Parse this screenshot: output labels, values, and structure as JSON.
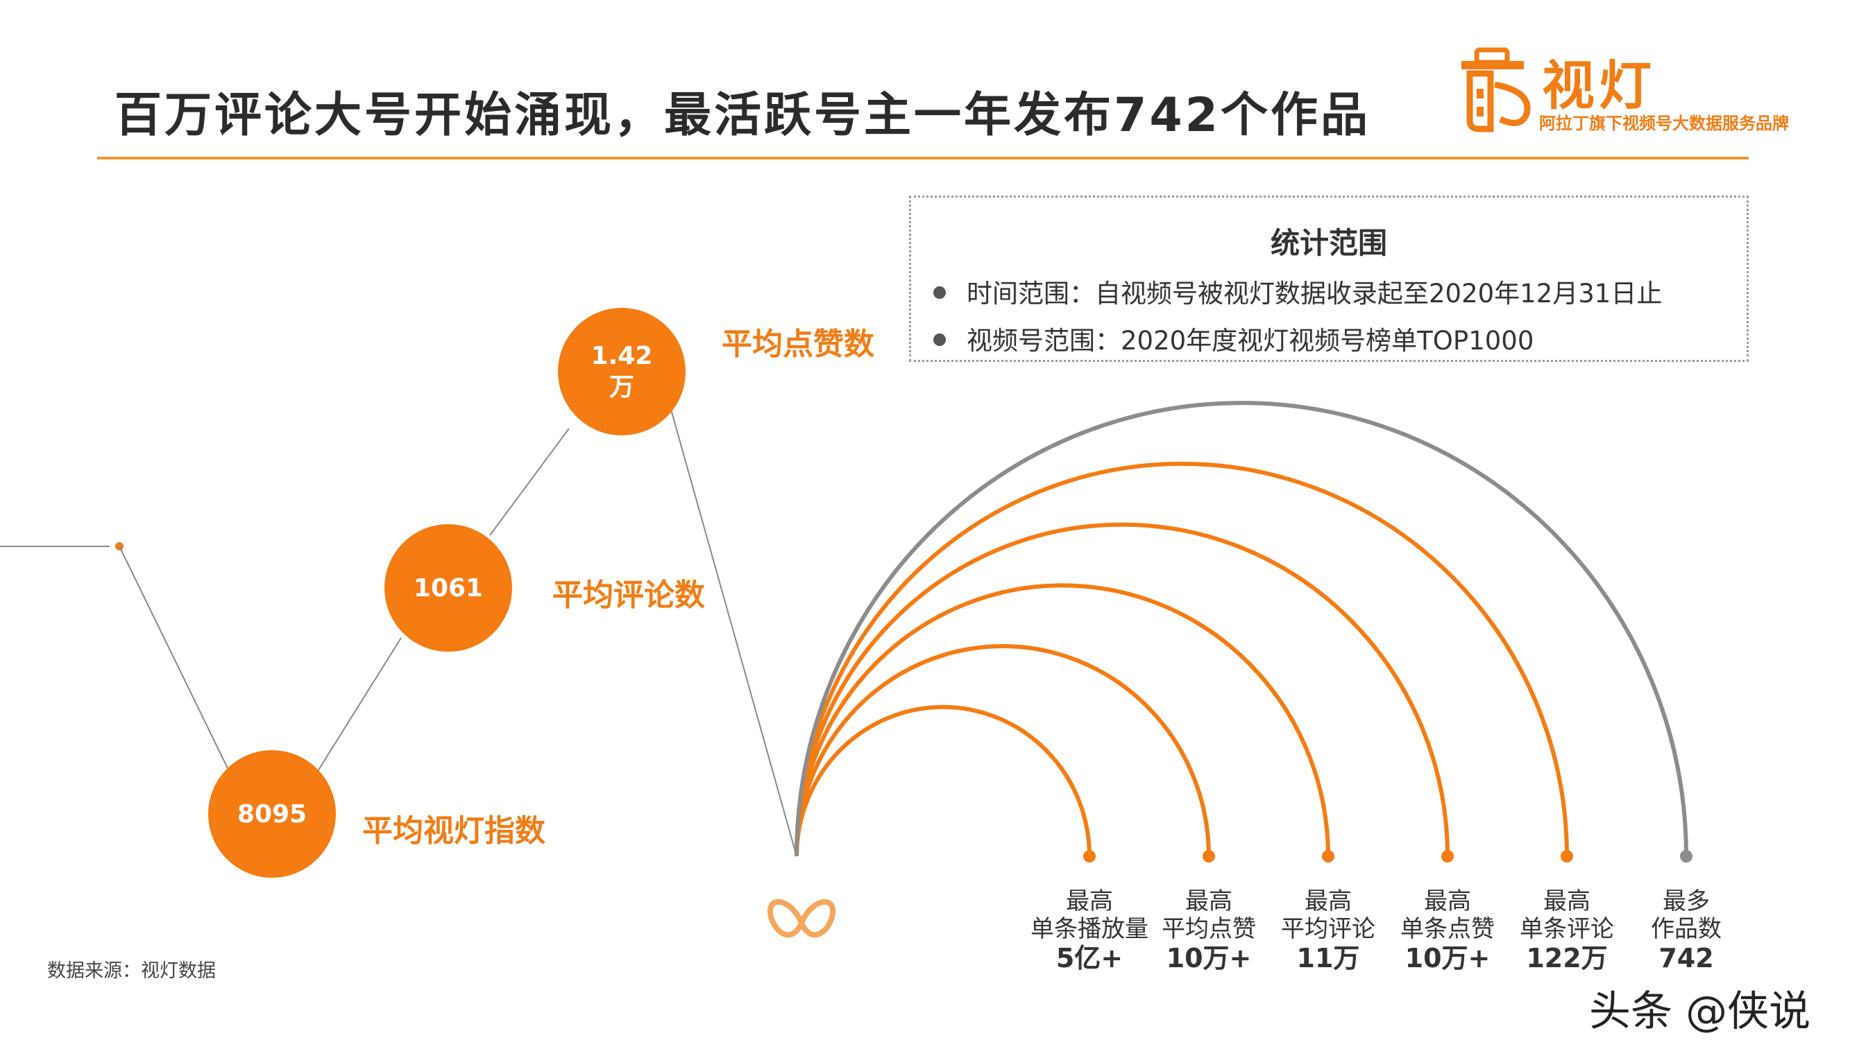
{
  "title": "百万评论大号开始涌现，最活跃号主一年发布742个作品",
  "brand": {
    "name": "视灯",
    "tagline": "阿拉丁旗下视频号大数据服务品牌",
    "accent": "#f07d15"
  },
  "scope": {
    "heading": "统计范围",
    "items": [
      "时间范围：自视频号被视灯数据收录起至2020年12月31日止",
      "视频号范围：2020年度视灯视频号榜单TOP1000"
    ]
  },
  "source": "数据来源：视灯数据",
  "watermark": "头条 @侠说",
  "chart_data": [
    {
      "type": "scatter",
      "title": "",
      "points": [
        {
          "label": "平均视灯指数",
          "value_text": "8095"
        },
        {
          "label": "平均评论数",
          "value_text": "1061"
        },
        {
          "label": "平均点赞数",
          "value_text": "1.42万",
          "value_lines": [
            "1.42",
            "万"
          ]
        }
      ]
    },
    {
      "type": "arc",
      "title": "",
      "items": [
        {
          "line1": "最高",
          "line2": "单条播放量",
          "value": "5亿+",
          "color": "#f47c12"
        },
        {
          "line1": "最高",
          "line2": "平均点赞",
          "value": "10万+",
          "color": "#f47c12"
        },
        {
          "line1": "最高",
          "line2": "平均评论",
          "value": "11万",
          "color": "#f47c12"
        },
        {
          "line1": "最高",
          "line2": "单条点赞",
          "value": "10万+",
          "color": "#f47c12"
        },
        {
          "line1": "最高",
          "line2": "单条评论",
          "value": "122万",
          "color": "#f47c12"
        },
        {
          "line1": "最多",
          "line2": "作品数",
          "value": "742",
          "color": "#8c8c8c"
        }
      ]
    }
  ]
}
